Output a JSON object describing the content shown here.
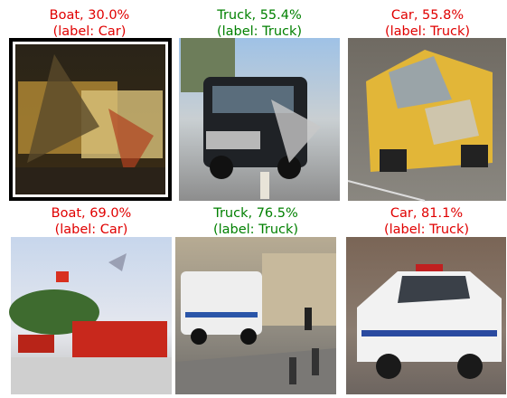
{
  "panels": [
    {
      "prediction": "Boat, 30.0%",
      "label": "(label: Car)",
      "color": "#e00000",
      "highlighted": true
    },
    {
      "prediction": "Truck, 55.4%",
      "label": "(label: Truck)",
      "color": "#008000",
      "highlighted": false
    },
    {
      "prediction": "Car, 55.8%",
      "label": "(label: Truck)",
      "color": "#e00000",
      "highlighted": false
    },
    {
      "prediction": "Boat, 69.0%",
      "label": "(label: Car)",
      "color": "#e00000",
      "highlighted": false
    },
    {
      "prediction": "Truck, 76.5%",
      "label": "(label: Truck)",
      "color": "#008000",
      "highlighted": false
    },
    {
      "prediction": "Car, 81.1%",
      "label": "(label: Truck)",
      "color": "#e00000",
      "highlighted": false
    }
  ]
}
